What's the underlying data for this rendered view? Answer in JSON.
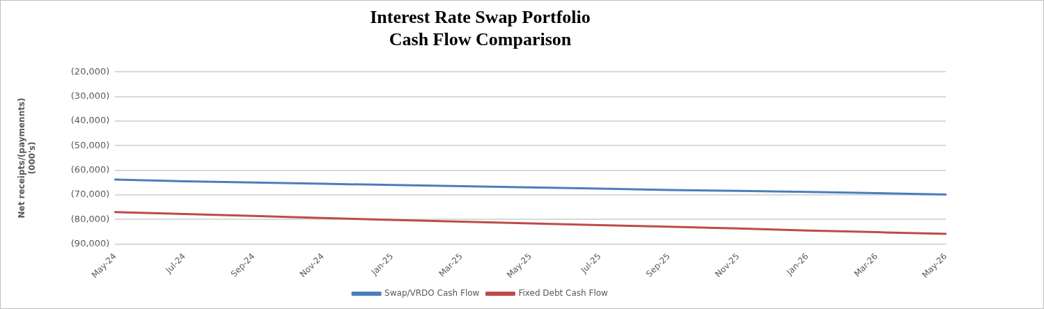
{
  "chart_data": {
    "type": "line",
    "title": "Interest Rate Swap Portfolio\nCash Flow Comparison",
    "ylabel": "Net receipts/(paymennts)\n(000's)",
    "categories": [
      "May-24",
      "Jul-24",
      "Sep-24",
      "Nov-24",
      "Jan-25",
      "Mar-25",
      "May-25",
      "Jul-25",
      "Sep-25",
      "Nov-25",
      "Jan-26",
      "Mar-26",
      "May-26"
    ],
    "series": [
      {
        "name": "Swap/VRDO Cash Flow",
        "color": "#4a7ebb",
        "values": [
          -63800,
          -64500,
          -65000,
          -65500,
          -66000,
          -66500,
          -67000,
          -67500,
          -68000,
          -68400,
          -68800,
          -69300,
          -69900
        ]
      },
      {
        "name": "Fixed Debt Cash Flow",
        "color": "#be4b48",
        "values": [
          -77000,
          -77800,
          -78600,
          -79400,
          -80200,
          -80900,
          -81600,
          -82300,
          -83000,
          -83700,
          -84500,
          -85200,
          -85900
        ]
      }
    ],
    "ylim": [
      -90000,
      -20000
    ],
    "yticks": [
      {
        "value": -90000,
        "label": "(90,000)"
      },
      {
        "value": -80000,
        "label": "(80,000)"
      },
      {
        "value": -70000,
        "label": "(70,000)"
      },
      {
        "value": -60000,
        "label": "(60,000)"
      },
      {
        "value": -50000,
        "label": "(50,000)"
      },
      {
        "value": -40000,
        "label": "(40,000)"
      },
      {
        "value": -30000,
        "label": "(30,000)"
      },
      {
        "value": -20000,
        "label": "(20,000)"
      }
    ],
    "grid": "y",
    "legend": "bottom",
    "marker": "none",
    "line_style": "solid"
  }
}
